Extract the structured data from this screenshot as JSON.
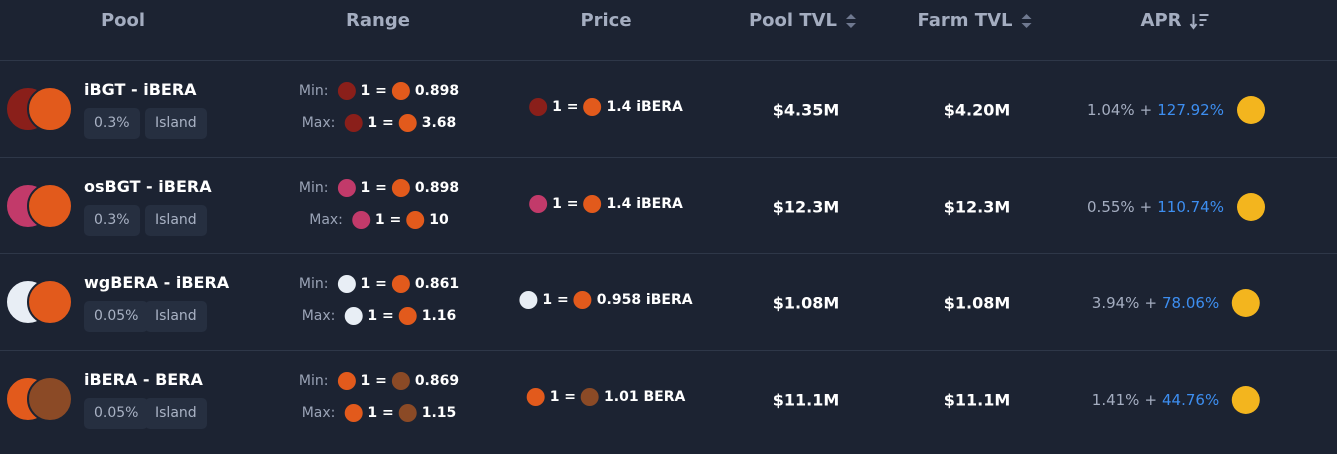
{
  "header": {
    "columns": [
      "Pool",
      "Range",
      "Price",
      "Pool TVL",
      "Farm TVL",
      "APR"
    ]
  },
  "labels": {
    "min": "Min:",
    "max": "Max:",
    "equals": "1 =",
    "plus": "+"
  },
  "rows": [
    {
      "pair": "iBGT - iBERA",
      "fee": "0.3%",
      "kind": "Island",
      "min": "0.898",
      "max": "3.68",
      "price": "1.4 iBERA",
      "pool_tvl": "$4.35M",
      "farm_tvl": "$4.20M",
      "apr_base": "1.04%",
      "apr_boost": "127.92%"
    },
    {
      "pair": "osBGT - iBERA",
      "fee": "0.3%",
      "kind": "Island",
      "min": "0.898",
      "max": "10",
      "price": "1.4 iBERA",
      "pool_tvl": "$12.3M",
      "farm_tvl": "$12.3M",
      "apr_base": "0.55%",
      "apr_boost": "110.74%"
    },
    {
      "pair": "wgBERA - iBERA",
      "fee": "0.05%",
      "kind": "Island",
      "min": "0.861",
      "max": "1.16",
      "price": "0.958 iBERA",
      "pool_tvl": "$1.08M",
      "farm_tvl": "$1.08M",
      "apr_base": "3.94%",
      "apr_boost": "78.06%"
    },
    {
      "pair": "iBERA - BERA",
      "fee": "0.05%",
      "kind": "Island",
      "min": "0.869",
      "max": "1.15",
      "price": "1.01 BERA",
      "pool_tvl": "$11.1M",
      "farm_tvl": "$11.1M",
      "apr_base": "1.41%",
      "apr_boost": "44.76%"
    }
  ]
}
